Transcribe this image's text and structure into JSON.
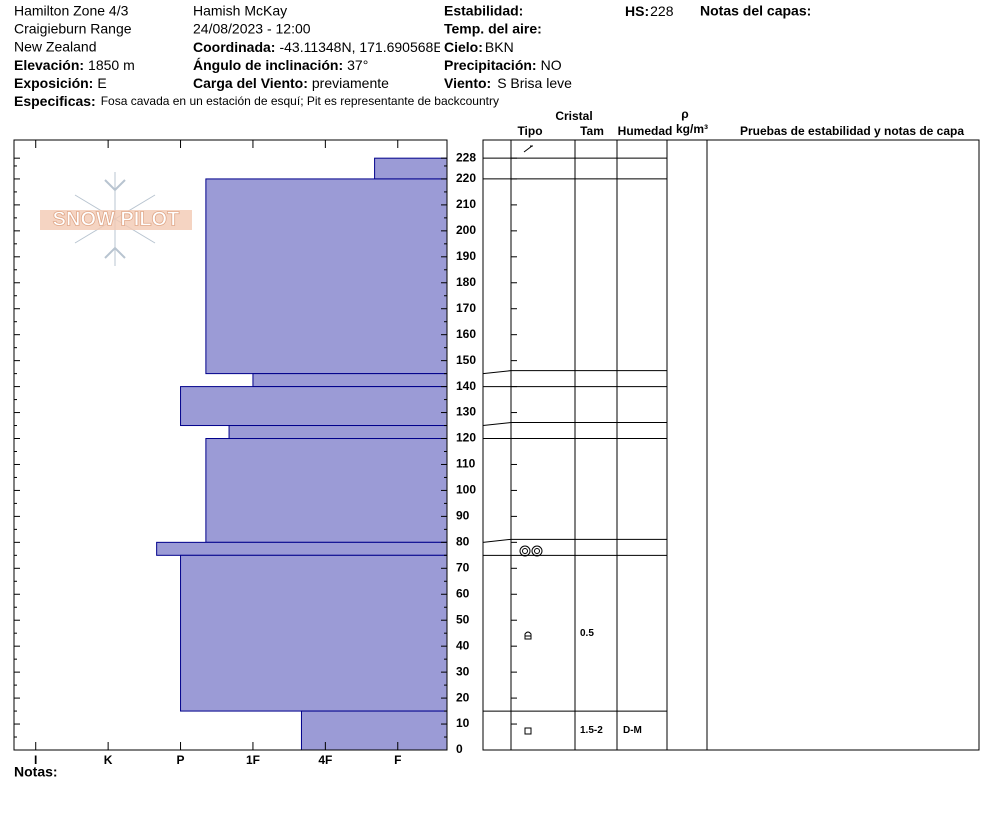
{
  "header": {
    "location": "Hamilton Zone 4/3",
    "range": "Craigieburn Range",
    "country": "New Zealand",
    "elevation_label": "Elevación:",
    "elevation": "1850 m",
    "aspect_label": "Exposición:",
    "aspect": "E",
    "specifics_label": "Especificas:",
    "specifics": "Fosa cavada en un estación de esquí; Pit es representante de backcountry",
    "observer": "Hamish McKay",
    "datetime": "24/08/2023 - 12:00",
    "coord_label": "Coordinada:",
    "coord": "-43.11348N, 171.690568E",
    "slope_label": "Ángulo de inclinación:",
    "slope": "37°",
    "wind_load_label": "Carga del Viento:",
    "wind_load": "previamente",
    "stability_label": "Estabilidad:",
    "air_temp_label": "Temp. del aire:",
    "sky_label": "Cielo:",
    "sky": "BKN",
    "precip_label": "Precipitación:",
    "precip": "NO",
    "wind_label": "Viento:",
    "wind": "S Brisa leve",
    "hs_label": "HS:",
    "hs": 228,
    "layer_notes_label": "Notas del capas:"
  },
  "logo": "SNOW PILOT",
  "table": {
    "crystal": "Cristal",
    "type": "Tipo",
    "size": "Tam",
    "moisture": "Humedad",
    "rho": "ρ",
    "density_unit": "kg/m³",
    "tests": "Pruebas de estabilidad y notas de capa"
  },
  "notes_label": "Notas:",
  "chart_data": {
    "type": "bar",
    "orientation": "horizontal",
    "color": "#9b9bd6",
    "ylim": [
      0,
      235
    ],
    "yticks": [
      0,
      10,
      20,
      30,
      40,
      50,
      60,
      70,
      80,
      90,
      100,
      110,
      120,
      130,
      140,
      150,
      160,
      170,
      180,
      190,
      200,
      210,
      220,
      228
    ],
    "xlim": [
      6.3,
      0.32
    ],
    "xticks": [
      {
        "value": 6,
        "label": "I"
      },
      {
        "value": 5,
        "label": "K"
      },
      {
        "value": 4,
        "label": "P"
      },
      {
        "value": 3,
        "label": "1F"
      },
      {
        "value": 2,
        "label": "4F"
      },
      {
        "value": 1,
        "label": "F"
      }
    ],
    "layers": [
      {
        "bottom": 220,
        "top": 228,
        "hardness": 1.32
      },
      {
        "bottom": 145,
        "top": 220,
        "hardness": 3.65
      },
      {
        "bottom": 140,
        "top": 145,
        "hardness": 3
      },
      {
        "bottom": 125,
        "top": 140,
        "hardness": 4
      },
      {
        "bottom": 120,
        "top": 125,
        "hardness": 3.33
      },
      {
        "bottom": 80,
        "top": 120,
        "hardness": 3.65
      },
      {
        "bottom": 75,
        "top": 80,
        "hardness": 4.33
      },
      {
        "bottom": 15,
        "top": 75,
        "hardness": 4,
        "size": "0.5"
      },
      {
        "bottom": 0,
        "top": 15,
        "hardness": 2.33,
        "size": "1.5-2",
        "moisture": "D-M"
      }
    ]
  }
}
